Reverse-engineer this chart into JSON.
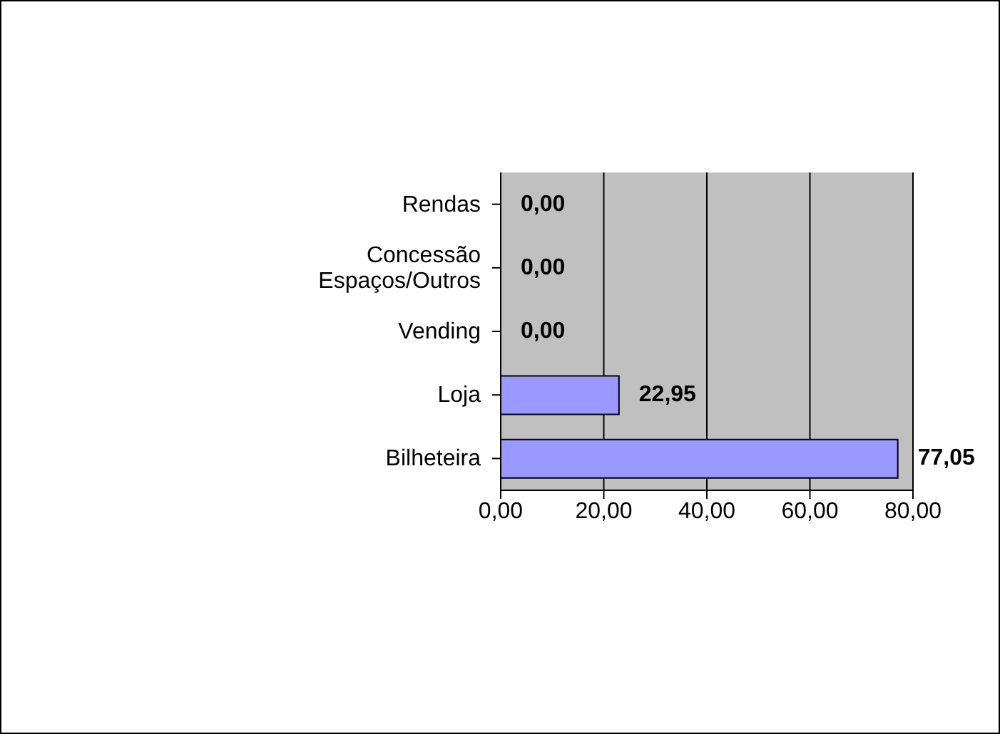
{
  "chart_data": {
    "type": "bar",
    "orientation": "horizontal",
    "categories": [
      "Rendas",
      "Concessão Espaços/Outros",
      "Vending",
      "Loja",
      "Bilheteira"
    ],
    "values": [
      0,
      0,
      0,
      22.95,
      77.05
    ],
    "value_labels": [
      "0,00",
      "0,00",
      "0,00",
      "22,95",
      "77,05"
    ],
    "color": "#9999ff",
    "xlim": [
      0,
      80
    ],
    "xticks": [
      {
        "value": 0,
        "label": "0,00"
      },
      {
        "value": 20,
        "label": "20,00"
      },
      {
        "value": 40,
        "label": "40,00"
      },
      {
        "value": 60,
        "label": "60,00"
      },
      {
        "value": 80,
        "label": "80,00"
      }
    ],
    "grid": "x"
  }
}
